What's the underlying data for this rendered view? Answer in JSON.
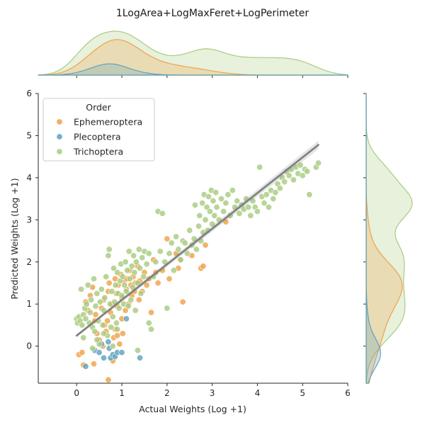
{
  "chart_data": {
    "type": "scatter",
    "title": "1LogArea+LogMaxFeret+LogPerimeter",
    "xlabel": "Actual Weights (Log +1)",
    "ylabel": "Predicted Weights (Log +1)",
    "xlim": [
      -0.85,
      6.0
    ],
    "ylim": [
      -0.88,
      6.0
    ],
    "xticks": [
      "0",
      "1",
      "2",
      "3",
      "4",
      "5",
      "6"
    ],
    "yticks": [
      "0",
      "1",
      "2",
      "3",
      "4",
      "5",
      "6"
    ],
    "grid": false,
    "legend": {
      "title": "Order",
      "position": "top-left"
    },
    "regression_line": {
      "x0": 0.0,
      "y0": 0.25,
      "x1": 5.35,
      "y1": 4.78,
      "color": "#7f7f7f"
    },
    "marginals": {
      "top": "kde",
      "right": "kde"
    },
    "series": [
      {
        "name": "Ephemeroptera",
        "color": "#f0a24a",
        "points": [
          [
            0.05,
            -0.2
          ],
          [
            0.12,
            -0.15
          ],
          [
            0.2,
            1.05
          ],
          [
            0.25,
            0.85
          ],
          [
            0.3,
            1.2
          ],
          [
            0.35,
            1.4
          ],
          [
            0.4,
            0.6
          ],
          [
            0.45,
            0.3
          ],
          [
            0.5,
            0.15
          ],
          [
            0.55,
            0.9
          ],
          [
            0.6,
            1.1
          ],
          [
            0.62,
            0.5
          ],
          [
            0.65,
            0.35
          ],
          [
            0.7,
            1.3
          ],
          [
            0.7,
            -0.8
          ],
          [
            0.72,
            1.5
          ],
          [
            0.75,
            0.8
          ],
          [
            0.78,
            1.0
          ],
          [
            0.8,
            -0.35
          ],
          [
            0.82,
            0.2
          ],
          [
            0.85,
            1.6
          ],
          [
            0.85,
            0.4
          ],
          [
            0.88,
            1.25
          ],
          [
            0.9,
            0.95
          ],
          [
            0.92,
            1.45
          ],
          [
            0.95,
            0.05
          ],
          [
            0.98,
            1.7
          ],
          [
            1.0,
            1.15
          ],
          [
            1.02,
            0.3
          ],
          [
            1.05,
            1.55
          ],
          [
            1.08,
            0.85
          ],
          [
            1.1,
            1.35
          ],
          [
            1.12,
            1.6
          ],
          [
            1.15,
            1.0
          ],
          [
            1.18,
            1.8
          ],
          [
            1.2,
            1.45
          ],
          [
            1.22,
            1.2
          ],
          [
            1.25,
            1.65
          ],
          [
            1.28,
            1.3
          ],
          [
            1.3,
            1.5
          ],
          [
            1.35,
            1.9
          ],
          [
            1.38,
            1.1
          ],
          [
            1.4,
            1.55
          ],
          [
            1.45,
            1.3
          ],
          [
            1.5,
            1.75
          ],
          [
            1.55,
            1.45
          ],
          [
            1.6,
            1.6
          ],
          [
            1.65,
            0.8
          ],
          [
            1.7,
            2.05
          ],
          [
            1.75,
            1.75
          ],
          [
            1.8,
            1.5
          ],
          [
            1.9,
            1.8
          ],
          [
            2.0,
            2.55
          ],
          [
            2.05,
            1.6
          ],
          [
            2.2,
            2.2
          ],
          [
            2.25,
            1.85
          ],
          [
            2.3,
            2.05
          ],
          [
            2.35,
            1.05
          ],
          [
            2.55,
            2.15
          ],
          [
            2.75,
            1.85
          ],
          [
            2.8,
            1.9
          ],
          [
            2.85,
            2.4
          ],
          [
            3.3,
            2.95
          ],
          [
            0.15,
            -0.45
          ],
          [
            0.38,
            -0.42
          ],
          [
            0.58,
            0.0
          ],
          [
            0.68,
            0.6
          ],
          [
            0.9,
            0.25
          ],
          [
            1.0,
            0.65
          ],
          [
            0.42,
            0.75
          ]
        ]
      },
      {
        "name": "Plecoptera",
        "color": "#5fa2c0",
        "points": [
          [
            0.2,
            -0.48
          ],
          [
            0.4,
            -0.1
          ],
          [
            0.5,
            -0.15
          ],
          [
            0.6,
            -0.28
          ],
          [
            0.7,
            0.1
          ],
          [
            0.72,
            -0.05
          ],
          [
            0.75,
            -0.28
          ],
          [
            0.8,
            -0.2
          ],
          [
            0.85,
            -0.25
          ],
          [
            0.9,
            -0.15
          ],
          [
            1.0,
            -0.15
          ],
          [
            1.1,
            0.65
          ],
          [
            1.4,
            -0.28
          ],
          [
            0.55,
            0.05
          ]
        ]
      },
      {
        "name": "Trichoptera",
        "color": "#a8cc80",
        "points": [
          [
            0.0,
            0.65
          ],
          [
            0.02,
            0.55
          ],
          [
            0.05,
            0.7
          ],
          [
            0.08,
            0.6
          ],
          [
            0.1,
            1.35
          ],
          [
            0.12,
            0.5
          ],
          [
            0.15,
            0.75
          ],
          [
            0.18,
            0.9
          ],
          [
            0.2,
            0.65
          ],
          [
            0.22,
            1.0
          ],
          [
            0.25,
            1.45
          ],
          [
            0.28,
            0.55
          ],
          [
            0.3,
            0.8
          ],
          [
            0.32,
            1.1
          ],
          [
            0.35,
            0.45
          ],
          [
            0.38,
            1.6
          ],
          [
            0.4,
            0.35
          ],
          [
            0.42,
            0.95
          ],
          [
            0.45,
            1.25
          ],
          [
            0.48,
            0.6
          ],
          [
            0.5,
            0.05
          ],
          [
            0.52,
            1.05
          ],
          [
            0.55,
            1.35
          ],
          [
            0.58,
            0.5
          ],
          [
            0.6,
            0.85
          ],
          [
            0.62,
            1.15
          ],
          [
            0.65,
            1.65
          ],
          [
            0.68,
            0.25
          ],
          [
            0.7,
            2.15
          ],
          [
            0.72,
            2.3
          ],
          [
            0.74,
            1.0
          ],
          [
            0.76,
            0.45
          ],
          [
            0.78,
            1.3
          ],
          [
            0.8,
            0.7
          ],
          [
            0.82,
            1.85
          ],
          [
            0.84,
            1.05
          ],
          [
            0.86,
            1.45
          ],
          [
            0.88,
            0.55
          ],
          [
            0.9,
            1.75
          ],
          [
            0.92,
            1.25
          ],
          [
            0.94,
            0.9
          ],
          [
            0.96,
            1.55
          ],
          [
            0.98,
            1.95
          ],
          [
            1.0,
            1.2
          ],
          [
            1.02,
            1.65
          ],
          [
            1.04,
            1.0
          ],
          [
            1.06,
            1.45
          ],
          [
            1.08,
            2.0
          ],
          [
            1.1,
            1.3
          ],
          [
            1.12,
            1.8
          ],
          [
            1.14,
            0.95
          ],
          [
            1.16,
            2.25
          ],
          [
            1.18,
            1.6
          ],
          [
            1.2,
            1.1
          ],
          [
            1.22,
            1.9
          ],
          [
            1.24,
            1.4
          ],
          [
            1.26,
            2.15
          ],
          [
            1.28,
            1.75
          ],
          [
            1.3,
            0.85
          ],
          [
            1.32,
            2.0
          ],
          [
            1.35,
            1.5
          ],
          [
            1.38,
            2.3
          ],
          [
            1.4,
            1.85
          ],
          [
            1.42,
            1.25
          ],
          [
            1.45,
            2.1
          ],
          [
            1.48,
            1.65
          ],
          [
            1.5,
            2.25
          ],
          [
            1.55,
            1.95
          ],
          [
            1.6,
            2.2
          ],
          [
            1.65,
            0.4
          ],
          [
            1.7,
            1.65
          ],
          [
            1.75,
            2.0
          ],
          [
            1.8,
            3.2
          ],
          [
            1.85,
            2.25
          ],
          [
            1.9,
            3.15
          ],
          [
            1.95,
            2.0
          ],
          [
            2.0,
            0.9
          ],
          [
            2.05,
            2.2
          ],
          [
            2.1,
            2.45
          ],
          [
            2.15,
            1.8
          ],
          [
            2.2,
            2.6
          ],
          [
            2.25,
            2.3
          ],
          [
            2.3,
            2.05
          ],
          [
            2.35,
            2.5
          ],
          [
            2.4,
            2.45
          ],
          [
            2.45,
            2.2
          ],
          [
            2.5,
            2.75
          ],
          [
            2.55,
            2.4
          ],
          [
            2.6,
            2.55
          ],
          [
            2.62,
            3.35
          ],
          [
            2.65,
            2.3
          ],
          [
            2.7,
            2.85
          ],
          [
            2.72,
            3.1
          ],
          [
            2.75,
            2.5
          ],
          [
            2.78,
            3.4
          ],
          [
            2.8,
            2.7
          ],
          [
            2.82,
            3.6
          ],
          [
            2.85,
            3.0
          ],
          [
            2.88,
            3.3
          ],
          [
            2.9,
            2.75
          ],
          [
            2.92,
            3.55
          ],
          [
            2.95,
            3.2
          ],
          [
            2.98,
            3.7
          ],
          [
            3.0,
            2.9
          ],
          [
            3.02,
            3.45
          ],
          [
            3.05,
            3.1
          ],
          [
            3.08,
            3.65
          ],
          [
            3.1,
            3.3
          ],
          [
            3.15,
            3.0
          ],
          [
            3.2,
            3.5
          ],
          [
            3.25,
            3.2
          ],
          [
            3.3,
            3.4
          ],
          [
            3.35,
            3.6
          ],
          [
            3.4,
            3.1
          ],
          [
            3.45,
            3.7
          ],
          [
            3.5,
            3.3
          ],
          [
            3.55,
            3.45
          ],
          [
            3.6,
            3.15
          ],
          [
            3.65,
            3.35
          ],
          [
            3.7,
            3.25
          ],
          [
            3.75,
            3.5
          ],
          [
            3.8,
            3.3
          ],
          [
            3.85,
            3.1
          ],
          [
            3.9,
            3.45
          ],
          [
            3.95,
            3.3
          ],
          [
            4.0,
            3.2
          ],
          [
            4.05,
            4.25
          ],
          [
            4.1,
            3.55
          ],
          [
            4.15,
            3.4
          ],
          [
            4.2,
            3.6
          ],
          [
            4.25,
            3.3
          ],
          [
            4.3,
            3.7
          ],
          [
            4.35,
            3.5
          ],
          [
            4.4,
            3.65
          ],
          [
            4.45,
            3.85
          ],
          [
            4.5,
            3.75
          ],
          [
            4.55,
            4.0
          ],
          [
            4.6,
            3.9
          ],
          [
            4.65,
            4.15
          ],
          [
            4.7,
            4.05
          ],
          [
            4.75,
            4.2
          ],
          [
            4.8,
            3.95
          ],
          [
            4.85,
            4.25
          ],
          [
            4.9,
            4.1
          ],
          [
            4.95,
            4.3
          ],
          [
            5.0,
            4.05
          ],
          [
            5.05,
            4.2
          ],
          [
            5.1,
            4.15
          ],
          [
            5.15,
            3.6
          ],
          [
            5.3,
            4.25
          ],
          [
            5.35,
            4.35
          ],
          [
            0.15,
            0.2
          ],
          [
            0.35,
            -0.05
          ],
          [
            0.45,
            0.15
          ],
          [
            0.6,
            0.3
          ],
          [
            0.9,
            0.4
          ],
          [
            1.35,
            -0.1
          ],
          [
            1.6,
            0.55
          ],
          [
            0.8,
            0.0
          ]
        ]
      }
    ]
  }
}
